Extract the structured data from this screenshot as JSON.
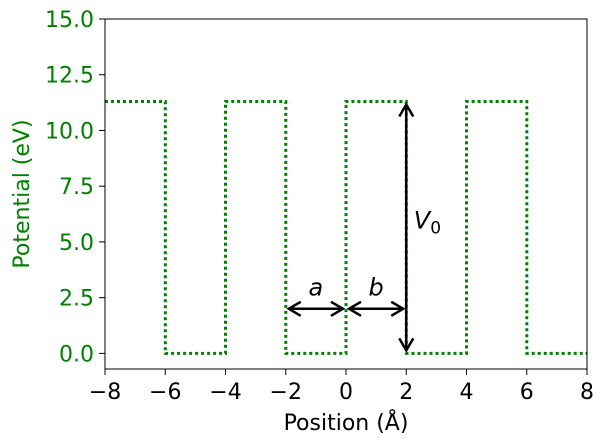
{
  "chart_data": {
    "type": "line",
    "xlabel": "Position (Å)",
    "ylabel": "Potential (eV)",
    "xlim": [
      -8,
      8
    ],
    "ylim": [
      -0.7,
      15.0
    ],
    "x_ticks": [
      -8,
      -6,
      -4,
      -2,
      0,
      2,
      4,
      6,
      8
    ],
    "x_tick_labels": [
      "−8",
      "−6",
      "−4",
      "−2",
      "0",
      "2",
      "4",
      "6",
      "8"
    ],
    "y_ticks": [
      0.0,
      2.5,
      5.0,
      7.5,
      10.0,
      12.5,
      15.0
    ],
    "y_tick_labels": [
      "0.0",
      "2.5",
      "5.0",
      "7.5",
      "10.0",
      "12.5",
      "15.0"
    ],
    "grid": false,
    "series": [
      {
        "color": "#008000",
        "style": "dotted",
        "x": [
          -8,
          -6,
          -6,
          -4,
          -4,
          -2,
          -2,
          0,
          0,
          2,
          2,
          4,
          4,
          6,
          6,
          8
        ],
        "y": [
          11.3,
          11.3,
          0,
          0,
          11.3,
          11.3,
          0,
          0,
          11.3,
          11.3,
          0,
          0,
          11.3,
          11.3,
          0,
          0
        ]
      }
    ],
    "annotations": [
      {
        "label": "a",
        "type": "double-arrow",
        "from": [
          -2,
          2.0
        ],
        "to": [
          0,
          2.0
        ],
        "label_at": [
          -1.0,
          2.6
        ]
      },
      {
        "label": "b",
        "type": "double-arrow",
        "from": [
          0,
          2.0
        ],
        "to": [
          2,
          2.0
        ],
        "label_at": [
          1.0,
          2.6
        ]
      },
      {
        "label": "V",
        "subscript": "0",
        "type": "double-arrow",
        "from": [
          2,
          11.3
        ],
        "to": [
          2,
          0
        ],
        "label_at": [
          2.25,
          5.6
        ]
      }
    ],
    "colors": {
      "axis_labels": "#008000",
      "arrows": "#000000",
      "series": "#008000"
    }
  }
}
